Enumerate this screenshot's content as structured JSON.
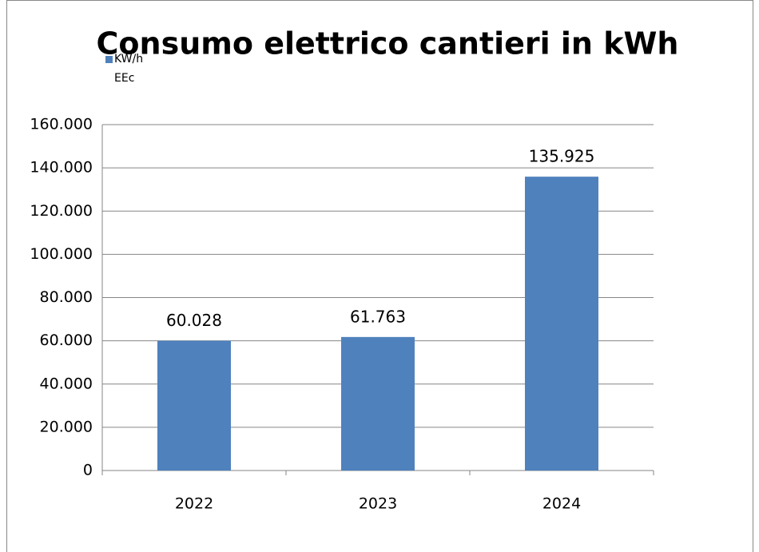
{
  "chart_data": {
    "type": "bar",
    "title": "Consumo elettrico cantieri in kWh",
    "categories": [
      "2022",
      "2023",
      "2024"
    ],
    "series": [
      {
        "name": "KW/h EEc",
        "color": "#4f81bd",
        "values": [
          60028,
          61763,
          135925
        ],
        "value_labels": [
          "60.028",
          "61.763",
          "135.925"
        ]
      }
    ],
    "ylim": [
      0,
      160000
    ],
    "yticks": [
      0,
      {
        "value": 20000,
        "label": "20.000"
      },
      {
        "value": 40000,
        "label": "40.000"
      },
      {
        "value": 60000,
        "label": "60.000"
      },
      {
        "value": 80000,
        "label": "80.000"
      },
      {
        "value": 100000,
        "label": "100.000"
      },
      {
        "value": 120000,
        "label": "120.000"
      },
      {
        "value": 140000,
        "label": "140.000"
      },
      {
        "value": 160000,
        "label": "160.000"
      }
    ],
    "grid": true,
    "legend": "top-left"
  }
}
